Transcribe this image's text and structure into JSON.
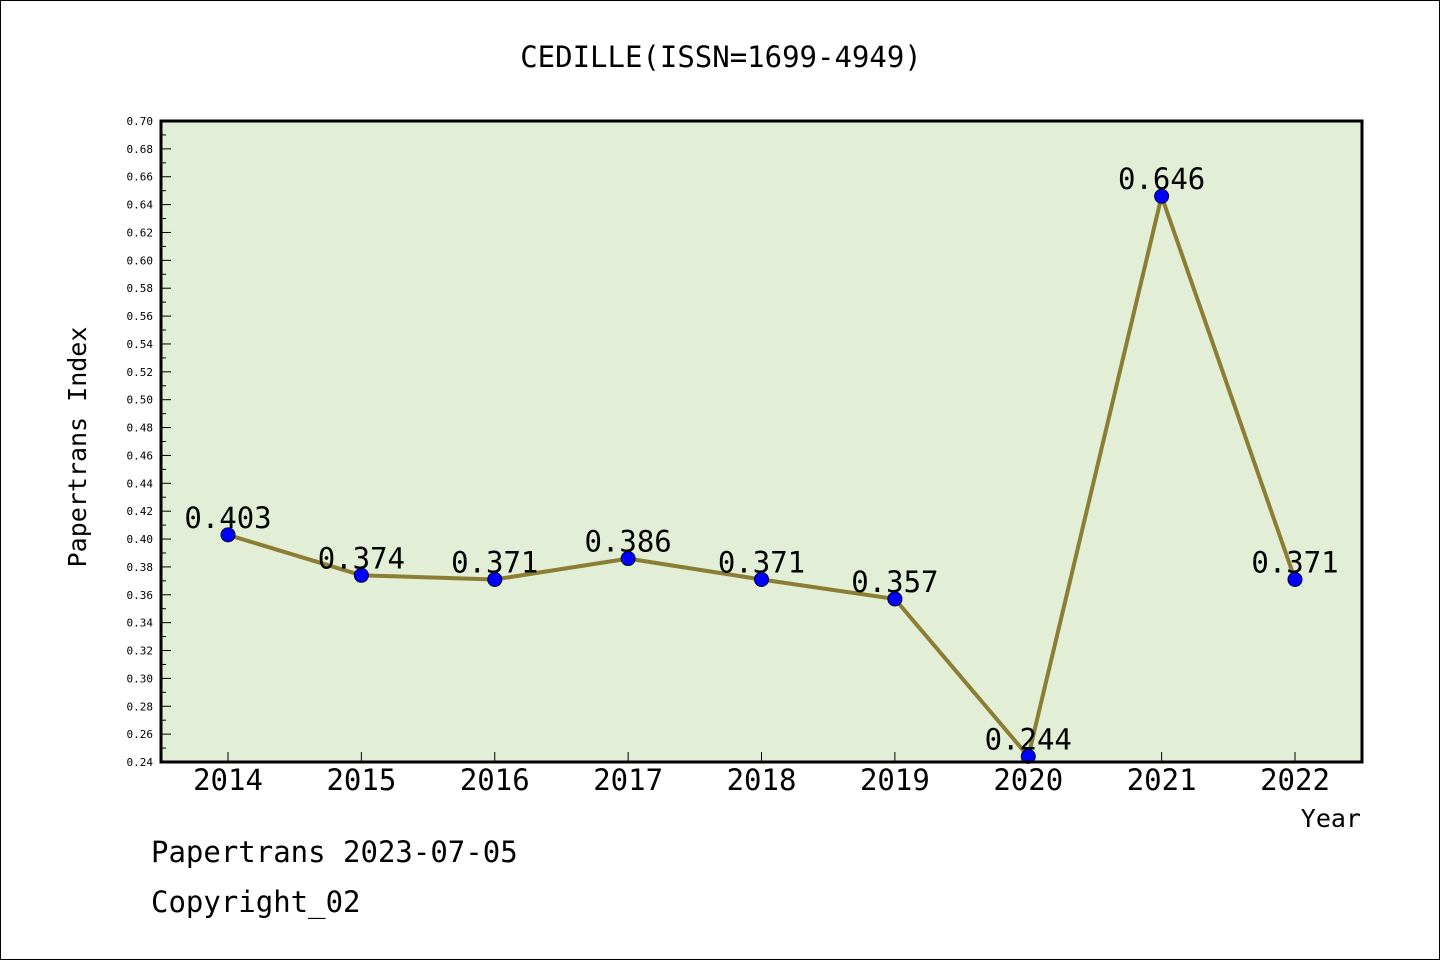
{
  "chart_data": {
    "type": "line",
    "title": "CEDILLE(ISSN=1699-4949)",
    "xlabel": "Year",
    "ylabel": "Papertrans Index",
    "categories": [
      "2014",
      "2015",
      "2016",
      "2017",
      "2018",
      "2019",
      "2020",
      "2021",
      "2022"
    ],
    "series": [
      {
        "values": [
          0.403,
          0.374,
          0.371,
          0.386,
          0.371,
          0.357,
          0.244,
          0.646,
          0.371
        ]
      }
    ],
    "data_labels": [
      "0.403",
      "0.374",
      "0.371",
      "0.386",
      "0.371",
      "0.357",
      "0.244",
      "0.646",
      "0.371"
    ],
    "ylim": [
      0.24,
      0.7
    ],
    "yticks": [
      "0.24",
      "0.26",
      "0.28",
      "0.30",
      "0.32",
      "0.34",
      "0.36",
      "0.38",
      "0.40",
      "0.42",
      "0.44",
      "0.46",
      "0.48",
      "0.50",
      "0.52",
      "0.54",
      "0.56",
      "0.58",
      "0.60",
      "0.62",
      "0.64",
      "0.66",
      "0.68",
      "0.70"
    ],
    "grid": false,
    "legend": "none",
    "colors": {
      "plot_background": "#e2efd6",
      "line": "#8b7d33",
      "marker": "#0000ff"
    }
  },
  "footer": {
    "line1": "Papertrans 2023-07-05",
    "line2": "Copyright_02"
  }
}
